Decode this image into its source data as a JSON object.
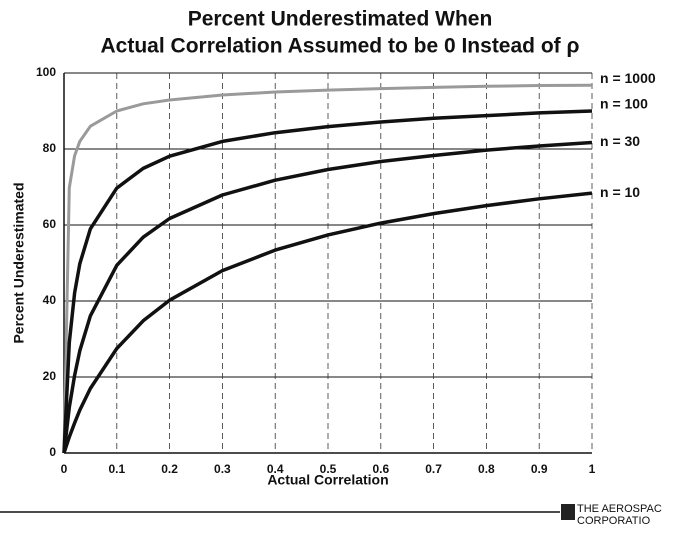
{
  "chart_data": {
    "type": "line",
    "title": [
      "Percent Underestimated When",
      "Actual Correlation Assumed to be 0 Instead of ρ"
    ],
    "x_label": "Actual Correlation",
    "y_label": "Percent Underestimated",
    "x": [
      0,
      0.01,
      0.02,
      0.03,
      0.05,
      0.1,
      0.15,
      0.2,
      0.3,
      0.4,
      0.5,
      0.6,
      0.7,
      0.8,
      0.9,
      1
    ],
    "series": [
      {
        "name": "n = 1000",
        "color": "#9a9a9a",
        "values": [
          0,
          69.8,
          78.2,
          82.0,
          86.0,
          90.0,
          91.9,
          92.9,
          94.2,
          95.0,
          95.5,
          95.9,
          96.2,
          96.5,
          96.7,
          96.8
        ]
      },
      {
        "name": "n = 100",
        "color": "#111111",
        "values": [
          0,
          29.1,
          42.1,
          49.8,
          59.0,
          69.7,
          74.9,
          78.1,
          82.0,
          84.3,
          85.9,
          87.1,
          88.1,
          88.8,
          89.5,
          90.0
        ]
      },
      {
        "name": "n = 30",
        "color": "#111111",
        "values": [
          0,
          12.0,
          20.4,
          26.9,
          36.1,
          49.4,
          56.8,
          61.7,
          67.9,
          71.8,
          74.6,
          76.7,
          78.3,
          79.7,
          80.8,
          81.7
        ]
      },
      {
        "name": "n = 10",
        "color": "#111111",
        "values": [
          0,
          4.2,
          7.9,
          11.3,
          17.0,
          27.5,
          34.8,
          40.2,
          48.0,
          53.4,
          57.4,
          60.5,
          63.0,
          65.1,
          66.9,
          68.4
        ]
      }
    ],
    "xlim": [
      0,
      1
    ],
    "xticks": [
      0,
      0.1,
      0.2,
      0.3,
      0.4,
      0.5,
      0.6,
      0.7,
      0.8,
      0.9,
      1
    ],
    "ylim": [
      0,
      100
    ],
    "yticks": [
      0,
      20,
      40,
      60,
      80,
      100
    ],
    "grid": true
  },
  "footer": {
    "logo": [
      "THE AEROSPAC",
      "CORPORATIO"
    ]
  }
}
